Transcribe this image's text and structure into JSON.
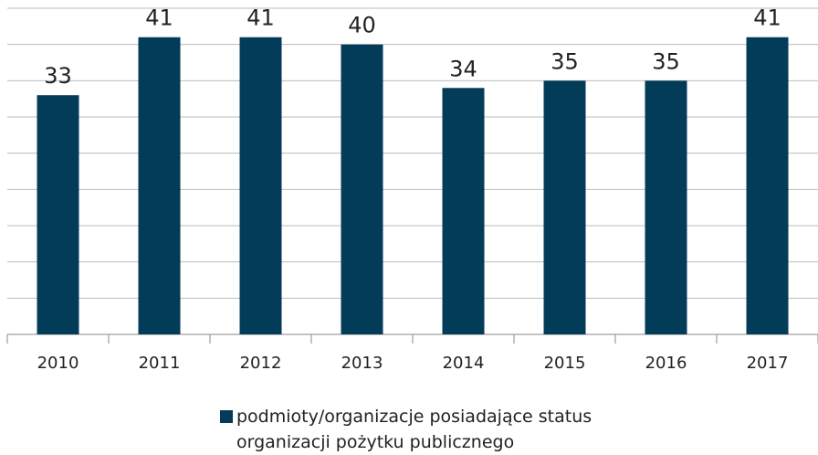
{
  "chart_data": {
    "type": "bar",
    "categories": [
      "2010",
      "2011",
      "2012",
      "2013",
      "2014",
      "2015",
      "2016",
      "2017"
    ],
    "series": [
      {
        "name": "podmioty/organizacje posiadające status organizacji pożytku publicznego",
        "color": "#033c58",
        "values": [
          33,
          41,
          41,
          40,
          34,
          35,
          35,
          41
        ]
      }
    ],
    "ylim": [
      0,
      45
    ],
    "yticks": [
      0,
      5,
      10,
      15,
      20,
      25,
      30,
      35,
      40,
      45
    ],
    "grid": true,
    "legend": "bottom"
  }
}
